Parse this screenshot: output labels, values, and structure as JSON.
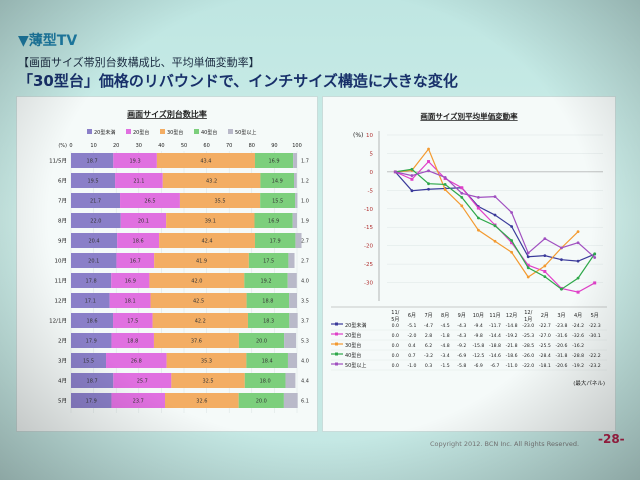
{
  "header": {
    "section": "▼薄型TV",
    "subtitle": "【画面サイズ帯別台数構成比、平均単価変動率】",
    "headline": "「30型台」価格のリバウンドで、インチサイズ構造に大きな変化"
  },
  "footer": {
    "copyright": "Copyright 2012. BCN Inc. All Rights Reserved.",
    "page": "-28-"
  },
  "colors": {
    "s20u": "#8a7fc8",
    "s20": "#e070e0",
    "s30": "#f3ad63",
    "s40": "#7ccf7c",
    "s50": "#b9b9c9"
  },
  "chart_data": [
    {
      "type": "bar",
      "title": "画面サイズ別台数比率",
      "ylabel": "(%)",
      "xticks": [
        "0",
        "10",
        "20",
        "30",
        "40",
        "50",
        "60",
        "70",
        "80",
        "90",
        "100"
      ],
      "legend": [
        "20型未満",
        "20型台",
        "30型台",
        "40型台",
        "50型以上"
      ],
      "categories": [
        "11/5月",
        "6月",
        "7月",
        "8月",
        "9月",
        "10月",
        "11月",
        "12月",
        "12/1月",
        "2月",
        "3月",
        "4月",
        "5月"
      ],
      "series": [
        {
          "name": "20型未満",
          "values": [
            18.7,
            19.5,
            21.7,
            22.0,
            20.4,
            20.1,
            17.8,
            17.1,
            18.6,
            17.9,
            15.5,
            18.7,
            17.9
          ]
        },
        {
          "name": "20型台",
          "values": [
            19.3,
            21.1,
            26.5,
            20.1,
            18.6,
            16.7,
            16.9,
            18.1,
            17.5,
            18.8,
            26.8,
            25.7,
            23.7
          ]
        },
        {
          "name": "30型台",
          "values": [
            43.4,
            43.2,
            35.5,
            39.1,
            42.4,
            41.9,
            42.0,
            42.5,
            42.2,
            37.6,
            35.3,
            32.5,
            32.6
          ]
        },
        {
          "name": "40型台",
          "values": [
            16.9,
            14.9,
            15.5,
            16.9,
            17.9,
            17.5,
            19.2,
            18.8,
            18.3,
            20.0,
            18.4,
            18.0,
            20.0
          ]
        },
        {
          "name": "50型以上",
          "values": [
            1.7,
            1.2,
            1.0,
            1.9,
            2.7,
            2.7,
            4.0,
            3.5,
            3.7,
            5.3,
            4.0,
            4.4,
            6.1
          ]
        }
      ]
    },
    {
      "type": "line",
      "title": "画面サイズ別平均単価変動率",
      "ylabel": "(%)",
      "yticks": [
        "10",
        "5",
        "0",
        "-5",
        "-10",
        "-15",
        "-20",
        "-25",
        "-30"
      ],
      "ylim": [
        -35,
        10
      ],
      "categories": [
        "11/5月",
        "6月",
        "7月",
        "8月",
        "9月",
        "10月",
        "11月",
        "12月",
        "12/1月",
        "2月",
        "3月",
        "4月",
        "5月"
      ],
      "series": [
        {
          "name": "20型未満",
          "color": "#3a3a9a",
          "values": [
            0.0,
            -5.1,
            -4.7,
            -4.5,
            -4.3,
            -9.4,
            -11.7,
            -14.8,
            -23.0,
            -22.7,
            -23.8,
            -24.2,
            -22.3
          ]
        },
        {
          "name": "20型台",
          "color": "#e040c8",
          "values": [
            0.0,
            -2.0,
            2.8,
            -1.8,
            -4.3,
            -9.8,
            -14.4,
            -19.2,
            -25.3,
            -27.0,
            -31.6,
            -32.6,
            -30.1
          ]
        },
        {
          "name": "30型台",
          "color": "#f39a30",
          "values": [
            0.0,
            0.4,
            6.2,
            -4.8,
            -9.2,
            -15.8,
            -18.8,
            -21.8,
            -28.5,
            -25.5,
            -20.6,
            -16.2,
            null
          ]
        },
        {
          "name": "40型台",
          "color": "#2ea84a",
          "values": [
            0.0,
            0.7,
            -3.2,
            -3.4,
            -6.9,
            -12.5,
            -14.6,
            -18.6,
            -26.0,
            -28.4,
            -31.8,
            -28.8,
            -22.2
          ]
        },
        {
          "name": "50型以上",
          "color": "#a050c0",
          "values": [
            0.0,
            -1.0,
            0.3,
            -1.5,
            -5.8,
            -6.9,
            -6.7,
            -11.0,
            -22.0,
            -18.1,
            -20.6,
            -19.2,
            -23.2
          ]
        }
      ],
      "table_note": "(最大パネル)"
    }
  ]
}
